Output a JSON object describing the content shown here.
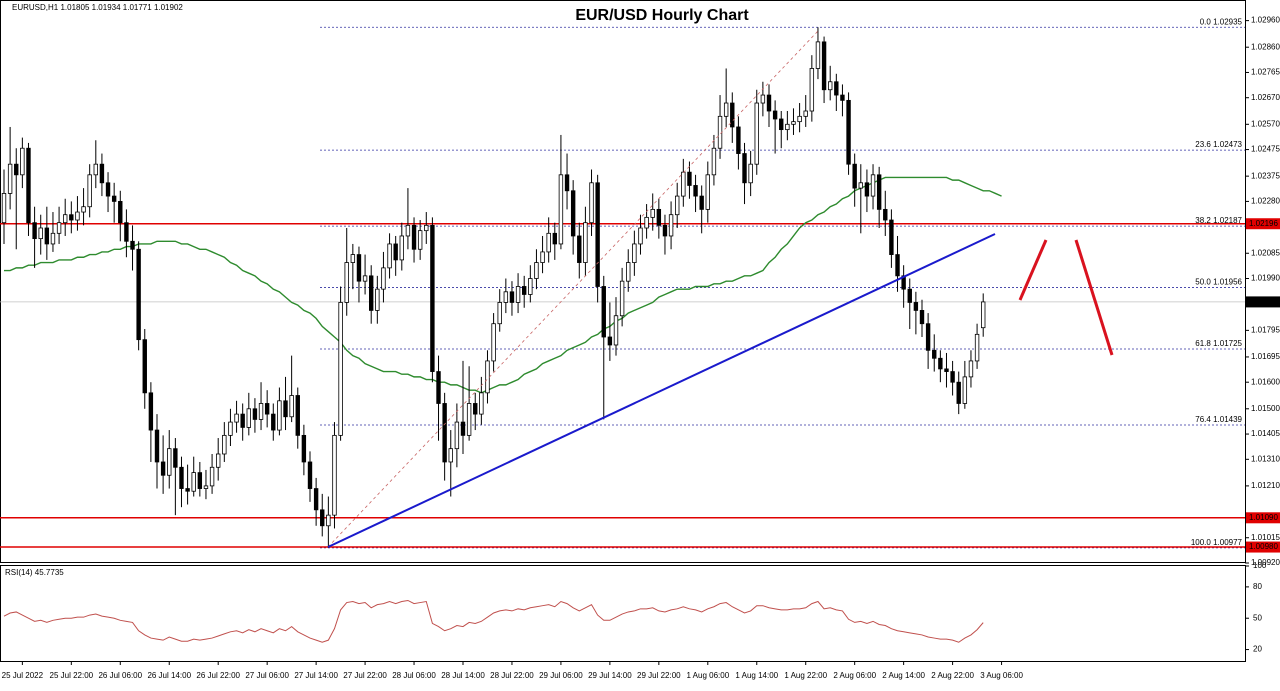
{
  "chart_data": {
    "type": "candlestick",
    "title": "EUR/USD Hourly Chart",
    "symbol": "EURUSD,H1",
    "categories": [
      null,
      null,
      null,
      "25 Jul 2022",
      null,
      null,
      null,
      null,
      null,
      null,
      null,
      "25 Jul 22:00",
      null,
      null,
      null,
      null,
      null,
      null,
      null,
      "26 Jul 06:00",
      null,
      null,
      null,
      null,
      null,
      null,
      null,
      "26 Jul 14:00",
      null,
      null,
      null,
      null,
      null,
      null,
      null,
      "26 Jul 22:00",
      null,
      null,
      null,
      null,
      null,
      null,
      null,
      "27 Jul 06:00",
      null,
      null,
      null,
      null,
      null,
      null,
      null,
      "27 Jul 14:00",
      null,
      null,
      null,
      null,
      null,
      null,
      null,
      "27 Jul 22:00",
      null,
      null,
      null,
      null,
      null,
      null,
      null,
      "28 Jul 06:00",
      null,
      null,
      null,
      null,
      null,
      null,
      null,
      "28 Jul 14:00",
      null,
      null,
      null,
      null,
      null,
      null,
      null,
      "28 Jul 22:00",
      null,
      null,
      null,
      null,
      null,
      null,
      null,
      "29 Jul 06:00",
      null,
      null,
      null,
      null,
      null,
      null,
      null,
      "29 Jul 14:00",
      null,
      null,
      null,
      null,
      null,
      null,
      null,
      "29 Jul 22:00",
      null,
      null,
      null,
      null,
      null,
      null,
      null,
      "1 Aug 06:00",
      null,
      null,
      null,
      null,
      null,
      null,
      null,
      "1 Aug 14:00",
      null,
      null,
      null,
      null,
      null,
      null,
      null,
      "1 Aug 22:00",
      null,
      null,
      null,
      null,
      null,
      null,
      null,
      "2 Aug 06:00",
      null,
      null,
      null,
      null,
      null,
      null,
      null,
      "2 Aug 14:00",
      null,
      null,
      null,
      null,
      null,
      null,
      null,
      "2 Aug 22:00",
      null,
      null,
      null,
      null,
      null,
      null,
      null,
      "3 Aug 06:00"
    ],
    "open": [
      1.022,
      1.0231,
      1.0242,
      1.0238,
      1.0248,
      1.022,
      1.0214,
      1.0218,
      1.0212,
      1.0216,
      1.022,
      1.0223,
      1.0221,
      1.0224,
      1.0226,
      1.0238,
      1.0242,
      1.0235,
      1.023,
      1.0228,
      1.022,
      1.0213,
      1.021,
      1.0176,
      1.0156,
      1.0142,
      1.013,
      1.0125,
      1.0135,
      1.0128,
      1.012,
      1.0119,
      1.0126,
      1.012,
      1.0121,
      1.0128,
      1.0133,
      1.014,
      1.0145,
      1.0148,
      1.0143,
      1.015,
      1.0146,
      1.0152,
      1.0148,
      1.0142,
      1.0153,
      1.0147,
      1.0155,
      1.014,
      1.013,
      1.012,
      1.0112,
      1.0106,
      1.011,
      1.014,
      1.019,
      1.0205,
      1.0208,
      1.0198,
      1.02,
      1.0187,
      1.0195,
      1.0203,
      1.0212,
      1.0206,
      1.0215,
      1.0219,
      1.021,
      1.0217,
      1.0219,
      1.0164,
      1.0152,
      1.013,
      1.0135,
      1.0145,
      1.014,
      1.0152,
      1.0148,
      1.0156,
      1.0168,
      1.0182,
      1.019,
      1.0194,
      1.019,
      1.0196,
      1.0193,
      1.0199,
      1.0205,
      1.0209,
      1.0216,
      1.0212,
      1.0238,
      1.0232,
      1.0215,
      1.0205,
      1.022,
      1.0235,
      1.0196,
      1.0177,
      1.0174,
      1.0185,
      1.0198,
      1.0205,
      1.0212,
      1.0218,
      1.0222,
      1.0225,
      1.0219,
      1.0215,
      1.0223,
      1.023,
      1.0239,
      1.0234,
      1.023,
      1.0225,
      1.0238,
      1.0248,
      1.026,
      1.0265,
      1.0256,
      1.0246,
      1.0235,
      1.0242,
      1.0265,
      1.0268,
      1.0262,
      1.0259,
      1.0255,
      1.0257,
      1.0258,
      1.026,
      1.0262,
      1.0278,
      1.0288,
      1.027,
      1.0273,
      1.0268,
      1.0266,
      1.0242,
      1.0233,
      1.0235,
      1.023,
      1.0238,
      1.0225,
      1.0221,
      1.0208,
      1.02,
      1.0195,
      1.019,
      1.0187,
      1.0182,
      1.0172,
      1.0169,
      1.0165,
      1.0164,
      1.016,
      1.0152,
      1.0162,
      1.0168,
      1.01805,
      null,
      null,
      null
    ],
    "high": [
      1.024,
      1.0256,
      1.0248,
      1.0252,
      1.025,
      1.0226,
      1.0223,
      1.0226,
      1.0224,
      1.0226,
      1.0229,
      1.0228,
      1.023,
      1.0233,
      1.0242,
      1.0251,
      1.0246,
      1.0239,
      1.0235,
      1.0232,
      1.0225,
      1.0219,
      1.0213,
      1.018,
      1.016,
      1.0148,
      1.014,
      1.0142,
      1.0139,
      1.0132,
      1.0129,
      1.0132,
      1.013,
      1.0127,
      1.0133,
      1.0139,
      1.0145,
      1.015,
      1.0153,
      1.0152,
      1.0156,
      1.0154,
      1.016,
      1.0157,
      1.0152,
      1.0158,
      1.0162,
      1.017,
      1.0158,
      1.0144,
      1.0134,
      1.0124,
      1.0118,
      1.0117,
      1.0145,
      1.0196,
      1.0218,
      1.0212,
      1.0211,
      1.0208,
      1.0204,
      1.02,
      1.0209,
      1.0216,
      1.0215,
      1.022,
      1.0233,
      1.0222,
      1.0221,
      1.0224,
      1.0222,
      1.017,
      1.0156,
      1.0142,
      1.0152,
      1.0168,
      1.0166,
      1.0156,
      1.0162,
      1.0172,
      1.0186,
      1.0195,
      1.0199,
      1.0198,
      1.0201,
      1.02,
      1.0204,
      1.021,
      1.0215,
      1.0222,
      1.022,
      1.0253,
      1.0246,
      1.0236,
      1.022,
      1.0226,
      1.024,
      1.0238,
      1.02,
      1.019,
      1.0192,
      1.0203,
      1.021,
      1.0217,
      1.0223,
      1.0227,
      1.0231,
      1.0229,
      1.0223,
      1.0228,
      1.0235,
      1.0244,
      1.0243,
      1.0238,
      1.0234,
      1.0243,
      1.0253,
      1.0268,
      1.0278,
      1.0269,
      1.026,
      1.025,
      1.0247,
      1.027,
      1.0273,
      1.0272,
      1.0266,
      1.0262,
      1.0262,
      1.0263,
      1.0265,
      1.0268,
      1.0283,
      1.02935,
      1.029,
      1.0279,
      1.0276,
      1.0272,
      1.0269,
      1.0246,
      1.0242,
      1.024,
      1.0242,
      1.0241,
      1.0232,
      1.0225,
      1.0215,
      1.0204,
      1.0199,
      1.0194,
      1.0191,
      1.0186,
      1.0178,
      1.0172,
      1.0171,
      1.0168,
      1.0164,
      1.0168,
      1.0172,
      1.0182,
      1.01934,
      null,
      null,
      null
    ],
    "low": [
      1.0212,
      1.0225,
      1.021,
      1.0233,
      1.0215,
      1.0203,
      1.0208,
      1.0206,
      1.0209,
      1.0212,
      1.0215,
      1.0216,
      1.0217,
      1.0219,
      1.0222,
      1.0233,
      1.023,
      1.0224,
      1.022,
      1.0213,
      1.0207,
      1.0202,
      1.0172,
      1.015,
      1.013,
      1.012,
      1.0118,
      1.012,
      1.011,
      1.0113,
      1.0114,
      1.0117,
      1.0117,
      1.0116,
      1.0118,
      1.0123,
      1.013,
      1.0136,
      1.0141,
      1.0138,
      1.014,
      1.0141,
      1.0142,
      1.0143,
      1.0138,
      1.014,
      1.0142,
      1.0145,
      1.0135,
      1.0125,
      1.0115,
      1.0106,
      1.0102,
      1.00977,
      1.0105,
      1.0138,
      1.0185,
      1.0195,
      1.019,
      1.0193,
      1.0182,
      1.0182,
      1.019,
      1.0199,
      1.02,
      1.0202,
      1.021,
      1.0205,
      1.0206,
      1.0212,
      1.016,
      1.0138,
      1.0123,
      1.0117,
      1.0128,
      1.0133,
      1.0138,
      1.0142,
      1.0144,
      1.0152,
      1.0164,
      1.0179,
      1.0186,
      1.0185,
      1.0186,
      1.0188,
      1.019,
      1.0195,
      1.0201,
      1.0205,
      1.0206,
      1.021,
      1.0225,
      1.0208,
      1.0199,
      1.02,
      1.0215,
      1.019,
      1.0146,
      1.0168,
      1.017,
      1.0181,
      1.0194,
      1.02,
      1.0208,
      1.0214,
      1.0217,
      1.0214,
      1.0208,
      1.021,
      1.0218,
      1.0226,
      1.0229,
      1.0224,
      1.0216,
      1.022,
      1.0234,
      1.0244,
      1.0256,
      1.025,
      1.024,
      1.0227,
      1.023,
      1.0238,
      1.026,
      1.0256,
      1.0246,
      1.0248,
      1.0251,
      1.0253,
      1.0254,
      1.0256,
      1.0258,
      1.0274,
      1.0265,
      1.0266,
      1.0262,
      1.026,
      1.0238,
      1.0226,
      1.0216,
      1.0224,
      1.0225,
      1.0218,
      1.0215,
      1.0203,
      1.0194,
      1.0188,
      1.018,
      1.0178,
      1.0177,
      1.0165,
      1.0164,
      1.016,
      1.0158,
      1.0155,
      1.0148,
      1.015,
      1.0158,
      1.0165,
      1.01771,
      null,
      null,
      null
    ],
    "close": [
      1.0231,
      1.0242,
      1.0238,
      1.0248,
      1.022,
      1.0214,
      1.0218,
      1.0212,
      1.0216,
      1.022,
      1.0223,
      1.0221,
      1.0224,
      1.0226,
      1.0238,
      1.0242,
      1.0235,
      1.023,
      1.0228,
      1.022,
      1.0213,
      1.021,
      1.0176,
      1.0156,
      1.0142,
      1.013,
      1.0125,
      1.0135,
      1.0128,
      1.012,
      1.0119,
      1.0126,
      1.012,
      1.0121,
      1.0128,
      1.0133,
      1.014,
      1.0145,
      1.0148,
      1.0143,
      1.015,
      1.0146,
      1.0152,
      1.0148,
      1.0142,
      1.0153,
      1.0147,
      1.0155,
      1.014,
      1.013,
      1.012,
      1.0112,
      1.0106,
      1.011,
      1.014,
      1.019,
      1.0205,
      1.0208,
      1.0198,
      1.02,
      1.0187,
      1.0195,
      1.0203,
      1.0212,
      1.0206,
      1.0215,
      1.0219,
      1.021,
      1.0217,
      1.0219,
      1.0164,
      1.0152,
      1.013,
      1.0135,
      1.0145,
      1.014,
      1.0152,
      1.0148,
      1.0156,
      1.0168,
      1.0182,
      1.019,
      1.0194,
      1.019,
      1.0196,
      1.0193,
      1.0199,
      1.0205,
      1.0209,
      1.0216,
      1.0212,
      1.0238,
      1.0232,
      1.0215,
      1.0205,
      1.022,
      1.0235,
      1.0196,
      1.0177,
      1.0174,
      1.0185,
      1.0198,
      1.0205,
      1.0212,
      1.0218,
      1.0222,
      1.0225,
      1.0219,
      1.0215,
      1.0223,
      1.023,
      1.0239,
      1.0234,
      1.023,
      1.0225,
      1.0238,
      1.0248,
      1.026,
      1.0265,
      1.0256,
      1.0246,
      1.0235,
      1.0242,
      1.0265,
      1.0268,
      1.0262,
      1.0259,
      1.0255,
      1.0257,
      1.0258,
      1.026,
      1.0262,
      1.0278,
      1.0288,
      1.027,
      1.0273,
      1.0268,
      1.0266,
      1.0242,
      1.0233,
      1.0235,
      1.023,
      1.0238,
      1.0225,
      1.0221,
      1.0208,
      1.02,
      1.0195,
      1.019,
      1.0187,
      1.0182,
      1.0172,
      1.0169,
      1.0165,
      1.0164,
      1.016,
      1.0152,
      1.0162,
      1.0168,
      1.0178,
      1.01902,
      null,
      null,
      null
    ],
    "ma_values": [
      1.0202,
      1.0202,
      1.0203,
      1.0203,
      1.0204,
      1.0204,
      1.0205,
      1.0205,
      1.0205,
      1.0206,
      1.0206,
      1.0206,
      1.0207,
      1.0207,
      1.0208,
      1.0208,
      1.0209,
      1.0209,
      1.021,
      1.021,
      1.0211,
      1.0211,
      1.0212,
      1.0212,
      1.0212,
      1.0213,
      1.0213,
      1.0213,
      1.0213,
      1.0212,
      1.0212,
      1.0211,
      1.021,
      1.021,
      1.0209,
      1.0208,
      1.0207,
      1.0205,
      1.0204,
      1.0202,
      1.0201,
      1.02,
      1.0198,
      1.0197,
      1.0195,
      1.0194,
      1.0192,
      1.019,
      1.0189,
      1.0187,
      1.0186,
      1.0184,
      1.0181,
      1.0179,
      1.0177,
      1.0175,
      1.0172,
      1.017,
      1.0169,
      1.0167,
      1.0166,
      1.0165,
      1.0164,
      1.0164,
      1.0164,
      1.0163,
      1.0163,
      1.0162,
      1.0162,
      1.0161,
      1.0161,
      1.016,
      1.016,
      1.0159,
      1.0159,
      1.0158,
      1.0157,
      1.0157,
      1.0156,
      1.0157,
      1.0158,
      1.0159,
      1.0159,
      1.016,
      1.0161,
      1.0163,
      1.0164,
      1.0165,
      1.0167,
      1.0168,
      1.0169,
      1.017,
      1.0172,
      1.0173,
      1.0174,
      1.0175,
      1.0177,
      1.0178,
      1.018,
      1.0181,
      1.0183,
      1.0184,
      1.0186,
      1.0187,
      1.0188,
      1.0189,
      1.019,
      1.0192,
      1.0193,
      1.0194,
      1.0195,
      1.0195,
      1.0195,
      1.0196,
      1.0196,
      1.0196,
      1.0197,
      1.0197,
      1.0198,
      1.0198,
      1.0199,
      1.02,
      1.02,
      1.0201,
      1.0202,
      1.0205,
      1.0207,
      1.021,
      1.0212,
      1.0215,
      1.0218,
      1.022,
      1.0221,
      1.0223,
      1.0224,
      1.0226,
      1.0227,
      1.0229,
      1.023,
      1.0232,
      1.0233,
      1.0234,
      1.0235,
      1.0236,
      1.0237,
      1.0237,
      1.0237,
      1.0237,
      1.0237,
      1.0237,
      1.0237,
      1.0237,
      1.0237,
      1.0237,
      1.0237,
      1.0236,
      1.0236,
      1.0235,
      1.0234,
      1.0233,
      1.0232,
      1.0232,
      1.0231,
      1.023
    ],
    "ma_color": "#2e8b2e",
    "bull_color": "#ffffff",
    "bear_color": "#000000",
    "ylim": [
      1.0092,
      1.0303
    ],
    "yticks": [
      {
        "value": 1.0296,
        "label": "1.02960"
      },
      {
        "value": 1.0286,
        "label": "1.02860"
      },
      1.02765,
      {
        "value": 1.0267,
        "label": "1.02670"
      },
      {
        "value": 1.0257,
        "label": "1.02570"
      },
      1.02475,
      1.02375,
      {
        "value": 1.0228,
        "label": "1.02280"
      },
      1.02085,
      {
        "value": 1.0199,
        "label": "1.01990"
      },
      1.01795,
      1.01695,
      {
        "value": 1.016,
        "label": "1.01600"
      },
      {
        "value": 1.015,
        "label": "1.01500"
      },
      1.01405,
      {
        "value": 1.0131,
        "label": "1.01310"
      },
      {
        "value": 1.0121,
        "label": "1.01210"
      },
      1.01015,
      {
        "value": 1.0092,
        "label": "1.00920"
      }
    ],
    "levels": [
      1.02196,
      {
        "value": 1.0109,
        "label": "1.01090"
      },
      {
        "value": 1.0098,
        "label": "1.00980"
      }
    ],
    "level_color": "#e00000",
    "fib_levels": [
      {
        "value": 1.02935,
        "label": "0.0 1.02935"
      },
      {
        "value": 1.02473,
        "label": "23.6 1.02473"
      },
      {
        "value": 1.02187,
        "label": "38.2 1.02187"
      },
      {
        "value": 1.01956,
        "label": "50.0 1.01956"
      },
      {
        "value": 1.01725,
        "label": "61.8 1.01725"
      },
      {
        "value": 1.01439,
        "label": "76.4 1.01439"
      },
      {
        "value": 1.00977,
        "label": "100.0 1.00977"
      }
    ],
    "fib_color": "#3030a0",
    "rsi_label": "RSI(14)",
    "rsi": [
      52,
      55,
      56,
      53,
      50,
      47,
      48,
      46,
      48,
      49,
      50,
      50,
      51,
      51,
      53,
      54,
      52,
      51,
      50,
      48,
      47,
      46,
      38,
      34,
      31,
      30,
      29,
      32,
      30,
      28,
      28,
      30,
      29,
      30,
      31,
      33,
      35,
      37,
      38,
      36,
      39,
      37,
      40,
      38,
      36,
      40,
      38,
      42,
      37,
      34,
      31,
      29,
      27,
      29,
      40,
      58,
      65,
      66,
      64,
      65,
      60,
      63,
      64,
      66,
      64,
      66,
      67,
      64,
      65,
      66,
      45,
      42,
      38,
      40,
      43,
      42,
      46,
      45,
      47,
      51,
      55,
      57,
      58,
      57,
      59,
      58,
      60,
      61,
      62,
      63,
      61,
      66,
      64,
      60,
      57,
      60,
      63,
      53,
      48,
      48,
      51,
      54,
      56,
      57,
      59,
      59,
      60,
      57,
      56,
      58,
      59,
      61,
      59,
      58,
      56,
      59,
      61,
      64,
      65,
      61,
      58,
      55,
      57,
      62,
      62,
      60,
      59,
      58,
      58,
      59,
      59,
      60,
      64,
      66,
      59,
      60,
      58,
      57,
      49,
      46,
      47,
      45,
      47,
      44,
      43,
      40,
      38,
      37,
      36,
      35,
      34,
      32,
      31,
      30,
      30,
      29,
      27,
      31,
      34,
      39,
      45.7735,
      null,
      null,
      null
    ],
    "rsi_color": "#c0504d",
    "rsi_ylim": [
      10,
      100
    ],
    "rsi_yticks": [
      100,
      80,
      50,
      20
    ]
  }
}
